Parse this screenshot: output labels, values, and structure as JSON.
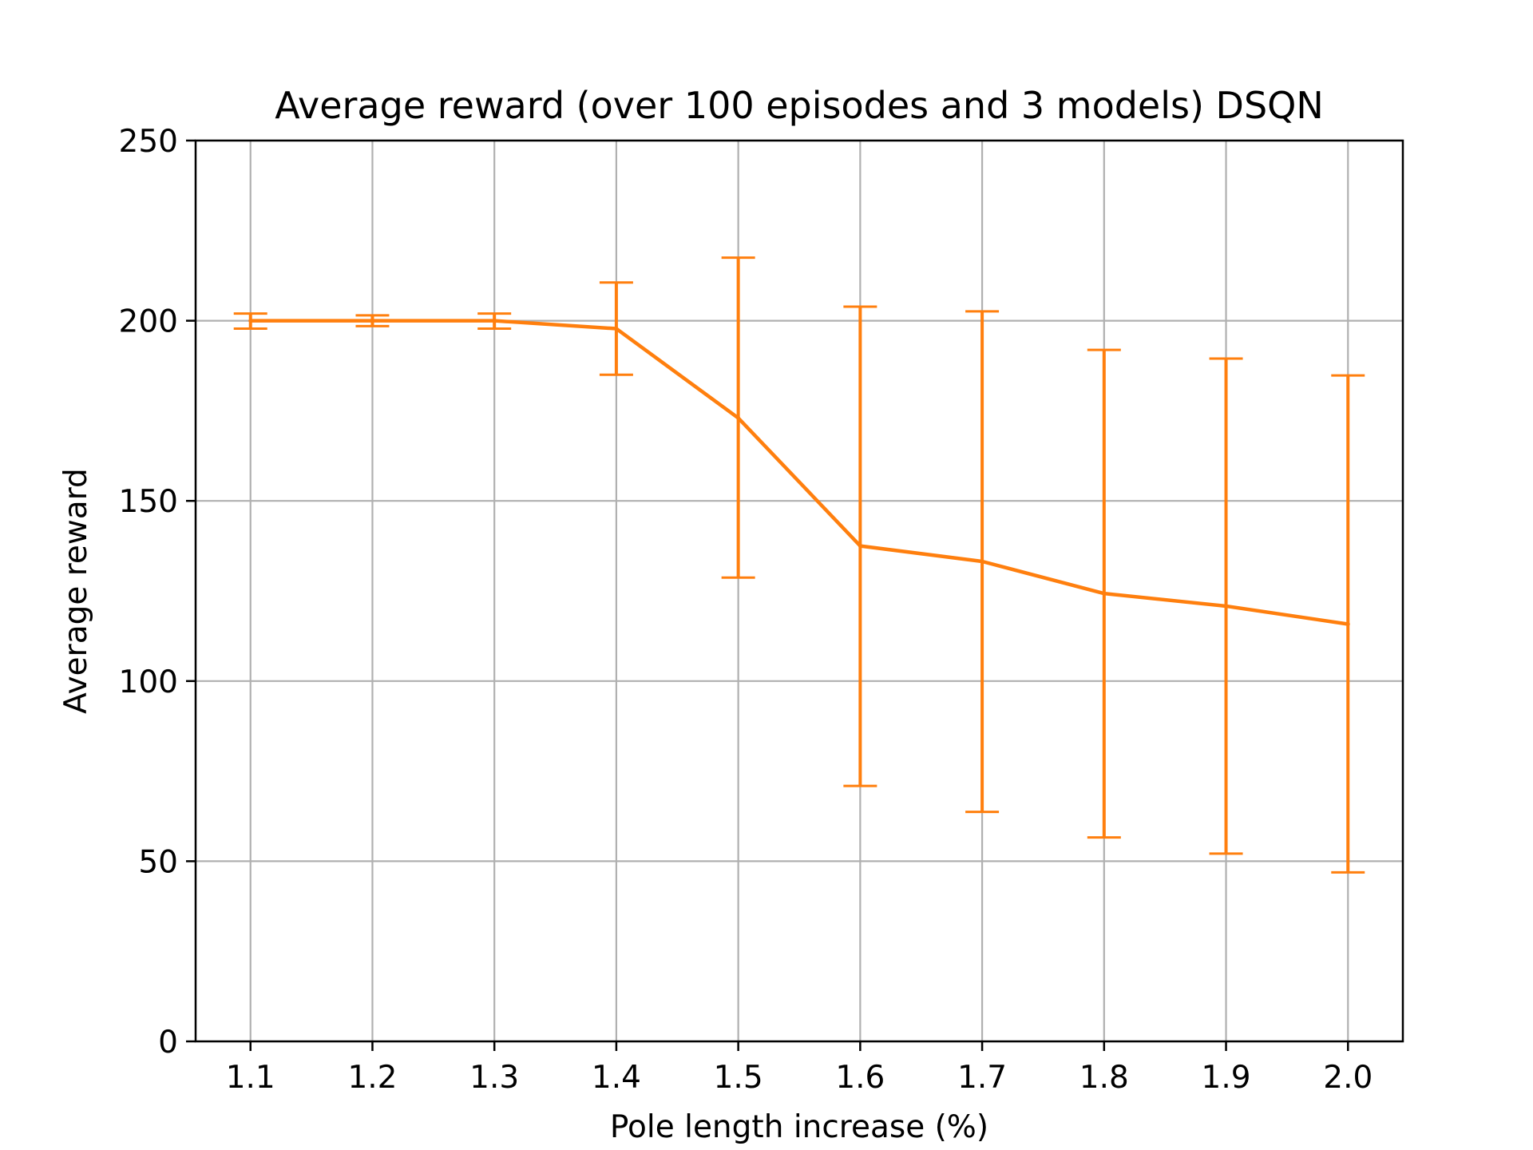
{
  "chart_data": {
    "type": "line",
    "title": "Average reward (over 100 episodes and 3 models) DSQN",
    "xlabel": "Pole length increase (%)",
    "ylabel": "Average reward",
    "x": [
      1.1,
      1.2,
      1.3,
      1.4,
      1.5,
      1.6,
      1.7,
      1.8,
      1.9,
      2.0
    ],
    "x_tick_labels": [
      "1.1",
      "1.2",
      "1.3",
      "1.4",
      "1.5",
      "1.6",
      "1.7",
      "1.8",
      "1.9",
      "2.0"
    ],
    "y_ticks": [
      0,
      50,
      100,
      150,
      200,
      250
    ],
    "y_tick_labels": [
      "0",
      "50",
      "100",
      "150",
      "200",
      "250"
    ],
    "xlim": [
      1.055,
      2.045
    ],
    "ylim": [
      0,
      250
    ],
    "grid": true,
    "series": [
      {
        "values": [
          200.0,
          200.0,
          200.0,
          197.8,
          173.0,
          137.5,
          133.2,
          124.3,
          120.8,
          115.8
        ],
        "error_low": [
          197.8,
          198.5,
          197.8,
          185.0,
          128.7,
          70.9,
          63.7,
          56.6,
          52.1,
          46.9
        ],
        "error_high": [
          202.0,
          201.5,
          202.0,
          210.6,
          217.5,
          203.9,
          202.6,
          191.9,
          189.5,
          184.8
        ],
        "color": "#ff7f0e"
      }
    ]
  }
}
